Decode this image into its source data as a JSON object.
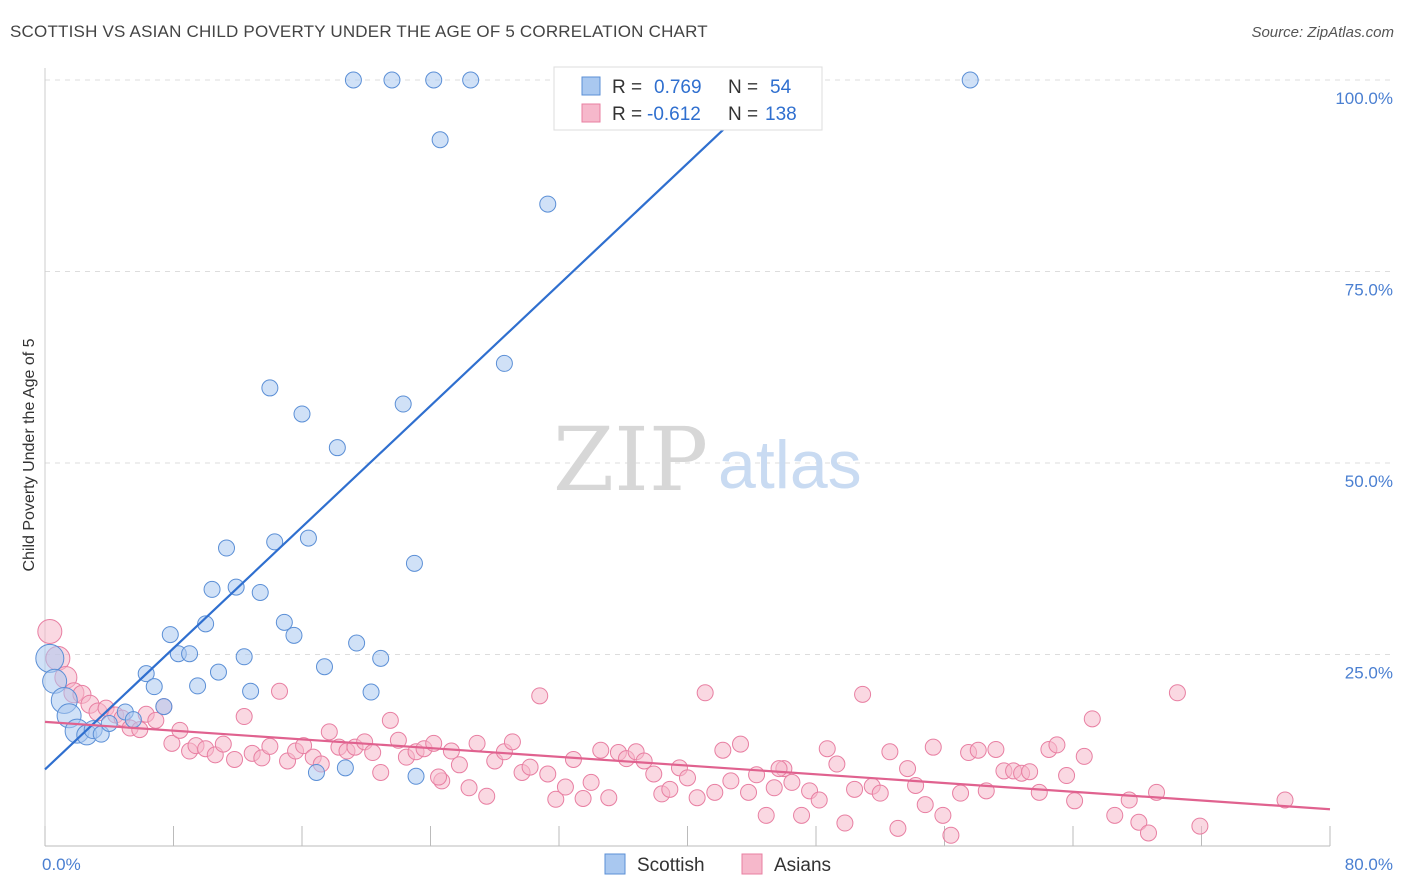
{
  "title": "SCOTTISH VS ASIAN CHILD POVERTY UNDER THE AGE OF 5 CORRELATION CHART",
  "source": "Source: ZipAtlas.com",
  "watermark": {
    "zip": "ZIP",
    "atlas": "atlas"
  },
  "colors": {
    "scottish_fill": "#a9c8f0",
    "scottish_stroke": "#5b8fd6",
    "scottish_line": "#2f6fcf",
    "asian_fill": "#f6b8cb",
    "asian_stroke": "#e87fa2",
    "asian_line": "#e0628f",
    "axis_label": "#4a7fd1",
    "grid": "#dddddd"
  },
  "legend": {
    "r_label": "R =",
    "n_label": "N =",
    "scottish_r": "0.769",
    "scottish_n": "54",
    "asian_r": "-0.612",
    "asian_n": "138"
  },
  "bottom_legend": {
    "scottish": "Scottish",
    "asians": "Asians"
  },
  "chart_data": {
    "type": "scatter",
    "title": "SCOTTISH VS ASIAN CHILD POVERTY UNDER THE AGE OF 5 CORRELATION CHART",
    "xlabel": "",
    "ylabel": "Child Poverty Under the Age of 5",
    "xlim": [
      0,
      80
    ],
    "ylim": [
      0,
      100
    ],
    "x_tick_labels": [
      "0.0%",
      "80.0%"
    ],
    "y_tick_labels": [
      "25.0%",
      "50.0%",
      "75.0%",
      "100.0%"
    ],
    "y_ticks": [
      25,
      50,
      75,
      100
    ],
    "grid": true,
    "legend_position": "top-center",
    "series": [
      {
        "name": "Scottish",
        "r": 0.769,
        "n": 54,
        "trend": {
          "x0": 0,
          "y0": 10,
          "x1": 45,
          "y1": 99
        },
        "points": [
          [
            0.3,
            24.5,
            14
          ],
          [
            0.6,
            21.5,
            12
          ],
          [
            1.2,
            19,
            13
          ],
          [
            1.5,
            17,
            12
          ],
          [
            2.0,
            15,
            12
          ],
          [
            2.6,
            14.5,
            10
          ],
          [
            3.0,
            15.2,
            9
          ],
          [
            3.5,
            14.6,
            8
          ],
          [
            4.0,
            16,
            8
          ],
          [
            5.0,
            17.5,
            8
          ],
          [
            5.5,
            16.5,
            8
          ],
          [
            6.3,
            22.5,
            8
          ],
          [
            6.8,
            20.8,
            8
          ],
          [
            7.4,
            18.2,
            8
          ],
          [
            7.8,
            27.6,
            8
          ],
          [
            8.3,
            25.1,
            8
          ],
          [
            9.0,
            25.1,
            8
          ],
          [
            9.5,
            20.9,
            8
          ],
          [
            10.0,
            29,
            8
          ],
          [
            10.4,
            33.5,
            8
          ],
          [
            10.8,
            22.7,
            8
          ],
          [
            11.3,
            38.9,
            8
          ],
          [
            11.9,
            33.8,
            8
          ],
          [
            12.4,
            24.7,
            8
          ],
          [
            12.8,
            20.2,
            8
          ],
          [
            13.4,
            33.1,
            8
          ],
          [
            14.0,
            59.8,
            8
          ],
          [
            14.3,
            39.7,
            8
          ],
          [
            14.9,
            29.2,
            8
          ],
          [
            15.5,
            27.5,
            8
          ],
          [
            16.0,
            56.4,
            8
          ],
          [
            16.4,
            40.2,
            8
          ],
          [
            16.9,
            9.6,
            8
          ],
          [
            17.4,
            23.4,
            8
          ],
          [
            18.2,
            52,
            8
          ],
          [
            18.7,
            10.2,
            8
          ],
          [
            19.4,
            26.5,
            8
          ],
          [
            20.3,
            20.1,
            8
          ],
          [
            20.9,
            24.5,
            8
          ],
          [
            22.3,
            57.7,
            8
          ],
          [
            23.0,
            36.9,
            8
          ],
          [
            23.1,
            9.1,
            8
          ],
          [
            24.2,
            100,
            8
          ],
          [
            24.6,
            92.2,
            8
          ],
          [
            28.6,
            63,
            8
          ],
          [
            31.3,
            83.8,
            8
          ],
          [
            19.2,
            100,
            8
          ],
          [
            21.6,
            100,
            8
          ],
          [
            26.5,
            100,
            8
          ],
          [
            47.5,
            100,
            8
          ],
          [
            57.6,
            100,
            8
          ]
        ]
      },
      {
        "name": "Asians",
        "r": -0.612,
        "n": 138,
        "trend": {
          "x0": 0,
          "y0": 16.2,
          "x1": 80,
          "y1": 4.8
        },
        "points": [
          [
            0.3,
            28,
            12
          ],
          [
            0.8,
            24.5,
            12
          ],
          [
            1.3,
            22,
            11
          ],
          [
            1.8,
            20,
            10
          ],
          [
            2.3,
            19.8,
            9
          ],
          [
            2.8,
            18.5,
            9
          ],
          [
            3.3,
            17.5,
            9
          ],
          [
            3.8,
            18,
            8
          ],
          [
            4.4,
            17.1,
            8
          ],
          [
            4.8,
            16.7,
            8
          ],
          [
            5.3,
            15.4,
            8
          ],
          [
            5.9,
            15.2,
            8
          ],
          [
            6.3,
            17.2,
            8
          ],
          [
            6.9,
            16.4,
            8
          ],
          [
            7.4,
            18.2,
            8
          ],
          [
            7.9,
            13.4,
            8
          ],
          [
            8.4,
            15.1,
            8
          ],
          [
            9.0,
            12.4,
            8
          ],
          [
            9.4,
            13.1,
            8
          ],
          [
            10.0,
            12.7,
            8
          ],
          [
            10.6,
            11.9,
            8
          ],
          [
            11.1,
            13.3,
            8
          ],
          [
            11.8,
            11.3,
            8
          ],
          [
            12.4,
            16.9,
            8
          ],
          [
            12.9,
            12.1,
            8
          ],
          [
            13.5,
            11.5,
            8
          ],
          [
            14.0,
            13,
            8
          ],
          [
            14.6,
            20.2,
            8
          ],
          [
            15.1,
            11.1,
            8
          ],
          [
            15.6,
            12.4,
            8
          ],
          [
            16.1,
            13.1,
            8
          ],
          [
            16.7,
            11.6,
            8
          ],
          [
            17.2,
            10.7,
            8
          ],
          [
            17.7,
            14.9,
            8
          ],
          [
            18.3,
            12.9,
            8
          ],
          [
            18.8,
            12.4,
            8
          ],
          [
            19.3,
            12.9,
            8
          ],
          [
            19.9,
            13.6,
            8
          ],
          [
            20.4,
            12.2,
            8
          ],
          [
            20.9,
            9.6,
            8
          ],
          [
            21.5,
            16.4,
            8
          ],
          [
            22.0,
            13.8,
            8
          ],
          [
            22.5,
            11.6,
            8
          ],
          [
            23.1,
            12.3,
            8
          ],
          [
            23.6,
            12.7,
            8
          ],
          [
            24.2,
            13.4,
            8
          ],
          [
            24.7,
            8.5,
            8
          ],
          [
            25.3,
            12.4,
            8
          ],
          [
            25.8,
            10.6,
            8
          ],
          [
            26.4,
            7.6,
            8
          ],
          [
            26.9,
            13.4,
            8
          ],
          [
            27.5,
            6.5,
            8
          ],
          [
            28.0,
            11.1,
            8
          ],
          [
            28.6,
            12.3,
            8
          ],
          [
            29.1,
            13.6,
            8
          ],
          [
            29.7,
            9.6,
            8
          ],
          [
            30.2,
            10.3,
            8
          ],
          [
            30.8,
            19.6,
            8
          ],
          [
            31.3,
            9.4,
            8
          ],
          [
            31.8,
            6.1,
            8
          ],
          [
            32.4,
            7.7,
            8
          ],
          [
            32.9,
            11.3,
            8
          ],
          [
            33.5,
            6.2,
            8
          ],
          [
            34.0,
            8.3,
            8
          ],
          [
            34.6,
            12.5,
            8
          ],
          [
            35.1,
            6.3,
            8
          ],
          [
            35.7,
            12.2,
            8
          ],
          [
            36.2,
            11.4,
            8
          ],
          [
            36.8,
            12.3,
            8
          ],
          [
            37.3,
            11.1,
            8
          ],
          [
            37.9,
            9.4,
            8
          ],
          [
            38.4,
            6.8,
            8
          ],
          [
            38.9,
            7.4,
            8
          ],
          [
            39.5,
            10.2,
            8
          ],
          [
            40.0,
            8.9,
            8
          ],
          [
            40.6,
            6.3,
            8
          ],
          [
            41.1,
            20,
            8
          ],
          [
            41.7,
            7,
            8
          ],
          [
            42.2,
            12.5,
            8
          ],
          [
            42.7,
            8.5,
            8
          ],
          [
            43.3,
            13.3,
            8
          ],
          [
            43.8,
            7,
            8
          ],
          [
            44.3,
            9.3,
            8
          ],
          [
            44.9,
            4,
            8
          ],
          [
            45.4,
            7.6,
            8
          ],
          [
            46.0,
            10.1,
            8
          ],
          [
            46.5,
            8.3,
            8
          ],
          [
            47.1,
            4,
            8
          ],
          [
            47.6,
            7.2,
            8
          ],
          [
            48.2,
            6,
            8
          ],
          [
            48.7,
            12.7,
            8
          ],
          [
            49.3,
            10.7,
            8
          ],
          [
            49.8,
            3,
            8
          ],
          [
            50.4,
            7.4,
            8
          ],
          [
            50.9,
            19.8,
            8
          ],
          [
            51.5,
            7.8,
            8
          ],
          [
            52.0,
            6.9,
            8
          ],
          [
            52.6,
            12.3,
            8
          ],
          [
            53.1,
            2.3,
            8
          ],
          [
            53.7,
            10.1,
            8
          ],
          [
            54.2,
            7.9,
            8
          ],
          [
            54.8,
            5.4,
            8
          ],
          [
            55.3,
            12.9,
            8
          ],
          [
            55.9,
            4,
            8
          ],
          [
            56.4,
            1.4,
            8
          ],
          [
            57.0,
            6.9,
            8
          ],
          [
            57.5,
            12.2,
            8
          ],
          [
            58.1,
            12.5,
            8
          ],
          [
            58.6,
            7.2,
            8
          ],
          [
            59.2,
            12.6,
            8
          ],
          [
            59.7,
            9.8,
            8
          ],
          [
            60.3,
            9.8,
            8
          ],
          [
            60.8,
            9.5,
            8
          ],
          [
            61.3,
            9.7,
            8
          ],
          [
            61.9,
            7,
            8
          ],
          [
            62.5,
            12.6,
            8
          ],
          [
            63.0,
            13.2,
            8
          ],
          [
            63.6,
            9.2,
            8
          ],
          [
            64.1,
            5.9,
            8
          ],
          [
            64.7,
            11.7,
            8
          ],
          [
            65.2,
            16.6,
            8
          ],
          [
            67.5,
            6,
            8
          ],
          [
            68.1,
            3.1,
            8
          ],
          [
            68.7,
            1.7,
            8
          ],
          [
            69.2,
            7,
            8
          ],
          [
            70.5,
            20,
            8
          ],
          [
            71.9,
            2.6,
            8
          ],
          [
            77.2,
            6,
            8
          ],
          [
            66.6,
            4,
            8
          ],
          [
            45.7,
            10.1,
            8
          ],
          [
            24.5,
            9,
            8
          ]
        ]
      }
    ]
  }
}
